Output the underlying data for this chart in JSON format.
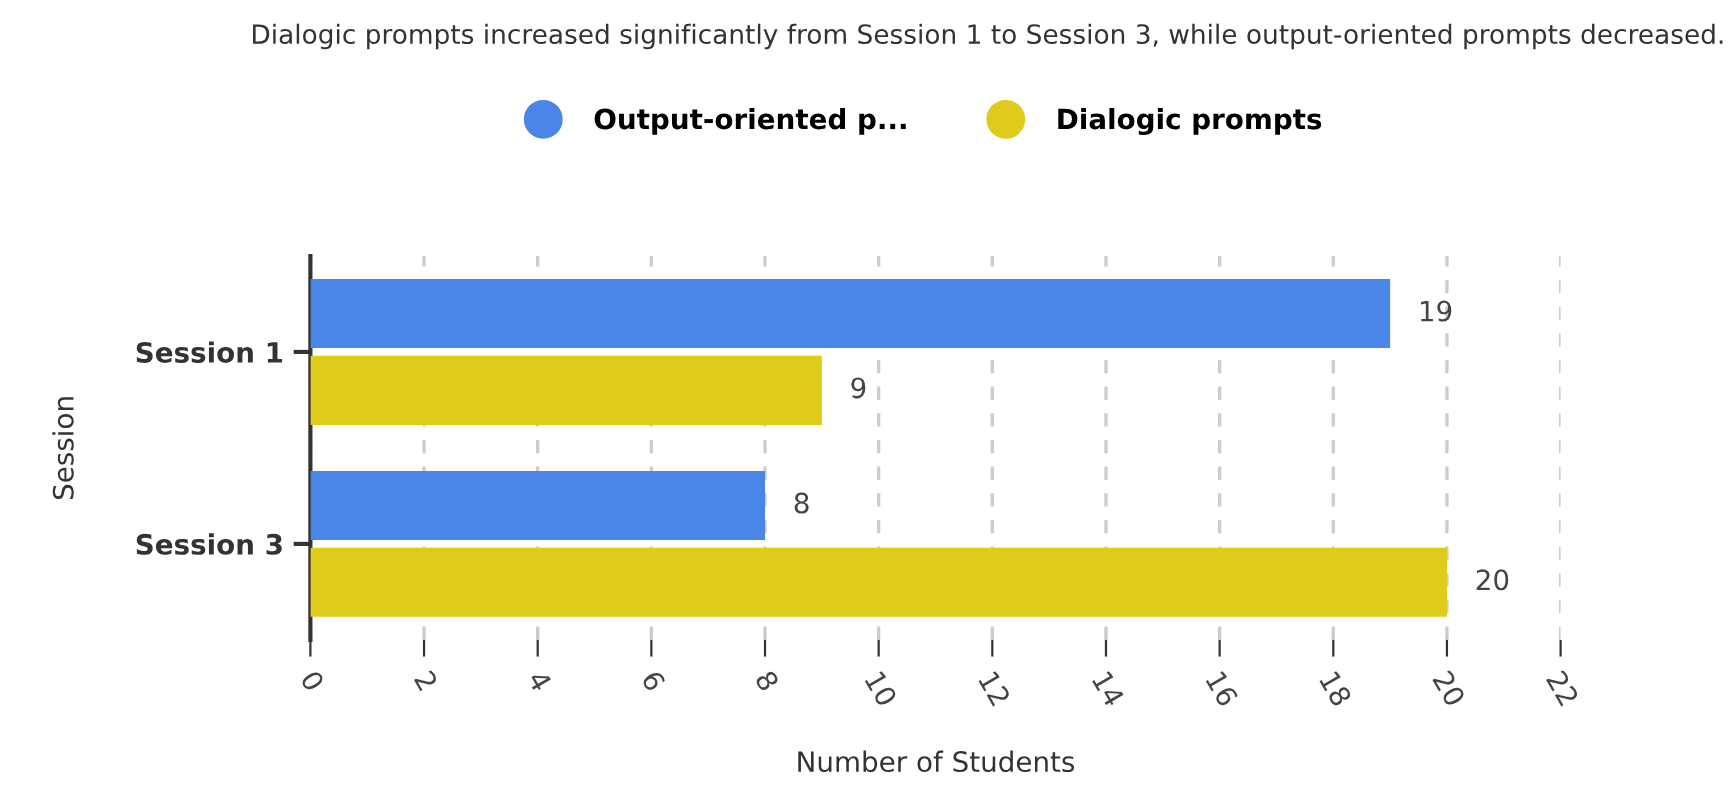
{
  "chart_data": {
    "type": "bar",
    "orientation": "horizontal",
    "title": "Dialogic prompts increased significantly from Session 1 to Session 3, while output-oriented prompts decreased.",
    "xlabel": "Number of Students",
    "ylabel": "Session",
    "categories": [
      "Session 1",
      "Session 3"
    ],
    "series": [
      {
        "name": "Output-oriented p...",
        "color": "#4a86e8",
        "values": [
          19,
          8
        ]
      },
      {
        "name": "Dialogic prompts",
        "color": "#dfcb1a",
        "values": [
          9,
          20
        ]
      }
    ],
    "xlim": [
      0,
      22
    ],
    "xticks": [
      0,
      2,
      4,
      6,
      8,
      10,
      12,
      14,
      16,
      18,
      20,
      22
    ],
    "grid": "x",
    "legend": "top",
    "data_labels": true
  }
}
